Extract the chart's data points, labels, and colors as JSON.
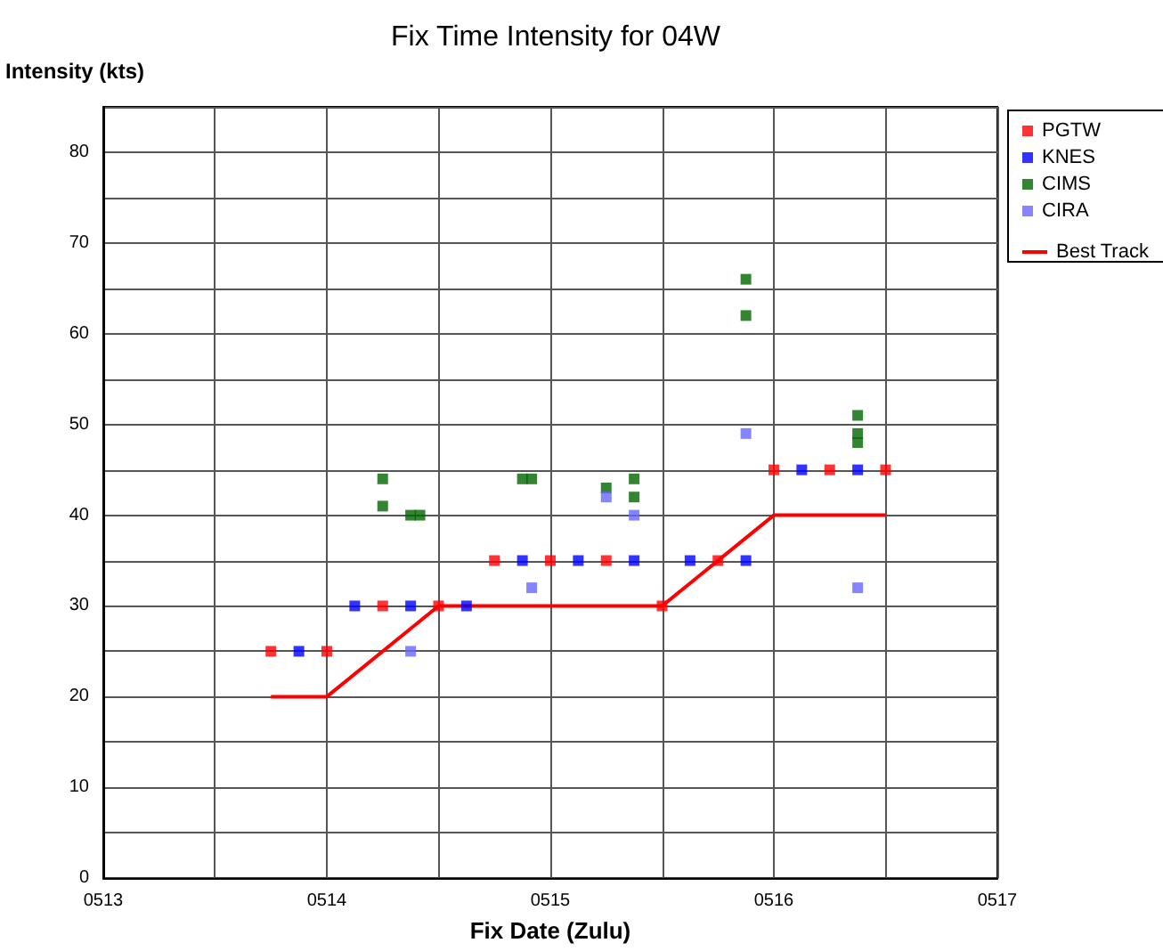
{
  "chart_data": {
    "type": "scatter",
    "title": "Fix Time Intensity for 04W",
    "xlabel": "Fix Date (Zulu)",
    "ylabel": "Intensity (kts)",
    "xlim": [
      "--05-13",
      "--05-17"
    ],
    "xticks": [
      {
        "value": "--05-13",
        "label": "0513"
      },
      {
        "value": "--05-13T12:00",
        "label": null
      },
      {
        "value": "--05-14",
        "label": "0514"
      },
      {
        "value": "--05-14T12:00",
        "label": null
      },
      {
        "value": "--05-15",
        "label": "0515"
      },
      {
        "value": "--05-15T12:00",
        "label": null
      },
      {
        "value": "--05-16",
        "label": "0516"
      },
      {
        "value": "--05-16T12:00",
        "label": null
      },
      {
        "value": "--05-17",
        "label": "0517"
      }
    ],
    "ylim": [
      0,
      85
    ],
    "yticks": [
      0,
      {
        "value": 5,
        "label": null
      },
      10,
      {
        "value": 15,
        "label": null
      },
      20,
      {
        "value": 25,
        "label": null
      },
      30,
      {
        "value": 35,
        "label": null
      },
      40,
      {
        "value": 45,
        "label": null
      },
      50,
      {
        "value": 55,
        "label": null
      },
      60,
      {
        "value": 65,
        "label": null
      },
      70,
      {
        "value": 75,
        "label": null
      },
      80,
      {
        "value": 85,
        "label": null
      }
    ],
    "grid": true,
    "legend": "top right",
    "marker": "square",
    "series": [
      {
        "name": "PGTW",
        "color": "#ff0000",
        "x": [
          "--05-13T18:00",
          "--05-14T00:00",
          "--05-14T06:00",
          "--05-14T12:00",
          "--05-14T18:00",
          "--05-15T00:00",
          "--05-15T06:00",
          "--05-15T12:00",
          "--05-15T18:00",
          "--05-16T00:00",
          "--05-16T06:00",
          "--05-16T12:00"
        ],
        "values": [
          25,
          25,
          30,
          30,
          35,
          35,
          35,
          30,
          35,
          45,
          45,
          45
        ]
      },
      {
        "name": "KNES",
        "color": "#0000ff",
        "x": [
          "--05-13T21:00",
          "--05-14T03:00",
          "--05-14T09:00",
          "--05-14T15:00",
          "--05-14T21:00",
          "--05-15T03:00",
          "--05-15T09:00",
          "--05-15T15:00",
          "--05-15T21:00",
          "--05-16T03:00",
          "--05-16T09:00"
        ],
        "values": [
          25,
          30,
          30,
          30,
          35,
          35,
          35,
          35,
          35,
          45,
          45
        ]
      },
      {
        "name": "CIMS",
        "color": "#006600",
        "x": [
          "--05-14T06:00",
          "--05-14T06:00",
          "--05-14T09:00",
          "--05-14T10:00",
          "--05-14T21:00",
          "--05-14T22:00",
          "--05-15T06:00",
          "--05-15T09:00",
          "--05-15T09:00",
          "--05-15T21:00",
          "--05-15T21:00",
          "--05-16T09:00",
          "--05-16T09:00",
          "--05-16T09:00"
        ],
        "values": [
          44,
          41,
          40,
          40,
          44,
          44,
          43,
          44,
          42,
          66,
          62,
          51,
          49,
          48
        ]
      },
      {
        "name": "CIRA",
        "color": "#6666ff",
        "x": [
          "--05-14T09:00",
          "--05-14T22:00",
          "--05-15T06:00",
          "--05-15T09:00",
          "--05-15T21:00",
          "--05-16T09:00"
        ],
        "values": [
          25,
          32,
          42,
          40,
          49,
          32
        ]
      },
      {
        "name": "Best Track",
        "type": "line",
        "marker": "none",
        "color": "#ff0000",
        "x": [
          "--05-13T18:00",
          "--05-14T00:00",
          "--05-14T12:00",
          "--05-15T12:00",
          "--05-16T00:00",
          "--05-16T12:00"
        ],
        "values": [
          20,
          20,
          30,
          30,
          40,
          40
        ]
      }
    ]
  }
}
